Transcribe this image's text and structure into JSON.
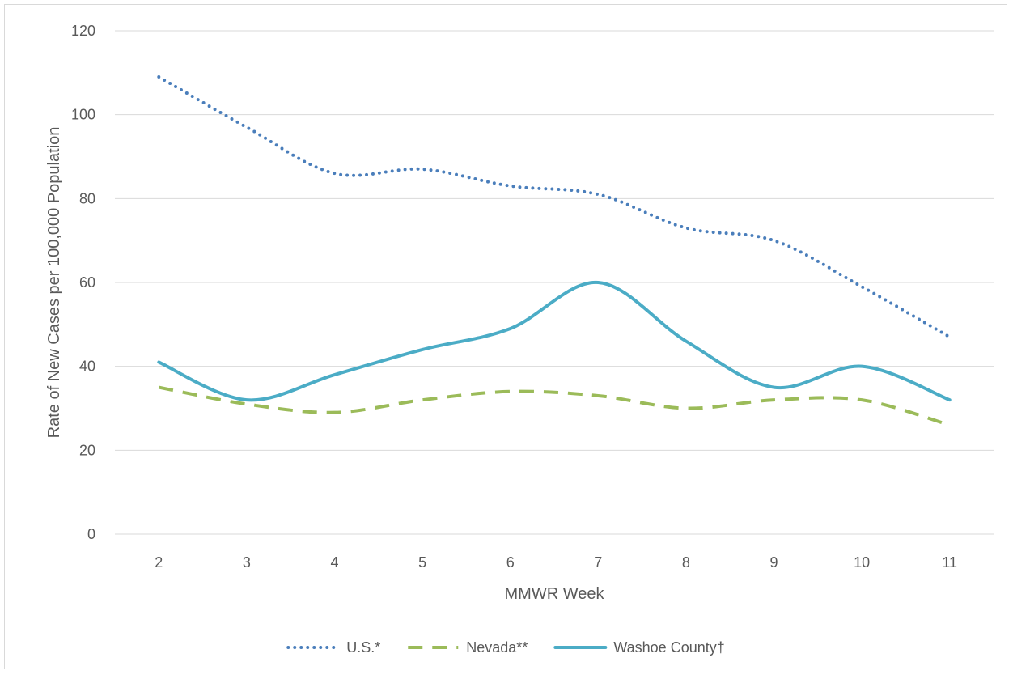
{
  "chart_data": {
    "type": "line",
    "title": "",
    "xlabel": "MMWR Week",
    "ylabel": "Rate of New Cases per 100,000 Population",
    "categories": [
      "2",
      "3",
      "4",
      "5",
      "6",
      "7",
      "8",
      "9",
      "10",
      "11"
    ],
    "ylim": [
      0,
      120
    ],
    "yticks": [
      "0",
      "20",
      "40",
      "60",
      "80",
      "100",
      "120"
    ],
    "grid": true,
    "legend_position": "bottom",
    "series": [
      {
        "name": "U.S.*",
        "style": "dotted",
        "color": "#4a7ebb",
        "values": [
          109,
          97,
          86,
          87,
          83,
          81,
          73,
          70,
          59,
          47
        ]
      },
      {
        "name": "Nevada**",
        "style": "dashed",
        "color": "#9bbb59",
        "values": [
          35,
          31,
          29,
          32,
          34,
          33,
          30,
          32,
          32,
          26
        ]
      },
      {
        "name": "Washoe County†",
        "style": "solid",
        "color": "#4bacc6",
        "values": [
          41,
          32,
          38,
          44,
          49,
          60,
          46,
          35,
          40,
          32
        ]
      }
    ]
  }
}
